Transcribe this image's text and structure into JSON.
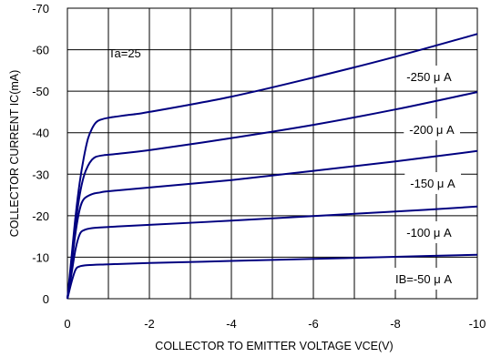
{
  "chart_data": {
    "type": "line",
    "xlabel": "COLLECTOR TO EMITTER VOLTAGE  VCE(V)",
    "ylabel": "COLLECTOR CURRENT  IC(mA)",
    "xlim": [
      0,
      -10
    ],
    "ylim": [
      0,
      -70
    ],
    "x_ticks": [
      "0",
      "-2",
      "-4",
      "-6",
      "-8",
      "-10"
    ],
    "y_ticks": [
      "-70",
      "-60",
      "-50",
      "-40",
      "-30",
      "-20",
      "-10",
      "0"
    ],
    "grid": true,
    "annotation": "Ta=25",
    "series_color": "#000080",
    "series": [
      {
        "name": "IB=-50 μ A",
        "x": [
          0,
          -0.1,
          -0.2,
          -0.3,
          -0.5,
          -1,
          -2,
          -4,
          -6,
          -8,
          -10
        ],
        "y": [
          0,
          -4,
          -7,
          -7.8,
          -8.1,
          -8.3,
          -8.6,
          -9.1,
          -9.6,
          -10.1,
          -10.6
        ]
      },
      {
        "name": "-100 μ A",
        "x": [
          0,
          -0.1,
          -0.2,
          -0.3,
          -0.4,
          -0.6,
          -1,
          -2,
          -4,
          -6,
          -8,
          -10
        ],
        "y": [
          0,
          -6,
          -12,
          -15.5,
          -16.5,
          -17,
          -17.3,
          -17.8,
          -18.8,
          -19.9,
          -21,
          -22.2
        ]
      },
      {
        "name": "-150 μ A",
        "x": [
          0,
          -0.1,
          -0.2,
          -0.3,
          -0.4,
          -0.6,
          -0.8,
          -1,
          -2,
          -4,
          -6,
          -8,
          -10
        ],
        "y": [
          0,
          -8,
          -16,
          -21.5,
          -24,
          -25.2,
          -25.6,
          -25.9,
          -26.8,
          -28.6,
          -30.8,
          -33.1,
          -35.6
        ]
      },
      {
        "name": "-200 μ A",
        "x": [
          0,
          -0.1,
          -0.2,
          -0.3,
          -0.4,
          -0.5,
          -0.6,
          -0.7,
          -0.9,
          -1.2,
          -2,
          -4,
          -6,
          -8,
          -10
        ],
        "y": [
          0,
          -9,
          -18,
          -25,
          -29.5,
          -32,
          -33.5,
          -34.2,
          -34.6,
          -34.9,
          -35.8,
          -38.7,
          -41.9,
          -45.6,
          -49.8
        ]
      },
      {
        "name": "-250 μ A",
        "x": [
          0,
          -0.1,
          -0.2,
          -0.3,
          -0.4,
          -0.5,
          -0.6,
          -0.7,
          -0.8,
          -1,
          -1.5,
          -2,
          -4,
          -6,
          -8,
          -10
        ],
        "y": [
          0,
          -10,
          -20,
          -28,
          -34,
          -38.5,
          -41,
          -42.5,
          -43.1,
          -43.6,
          -44.3,
          -45,
          -48.7,
          -53.3,
          -58.3,
          -63.8
        ]
      }
    ]
  }
}
